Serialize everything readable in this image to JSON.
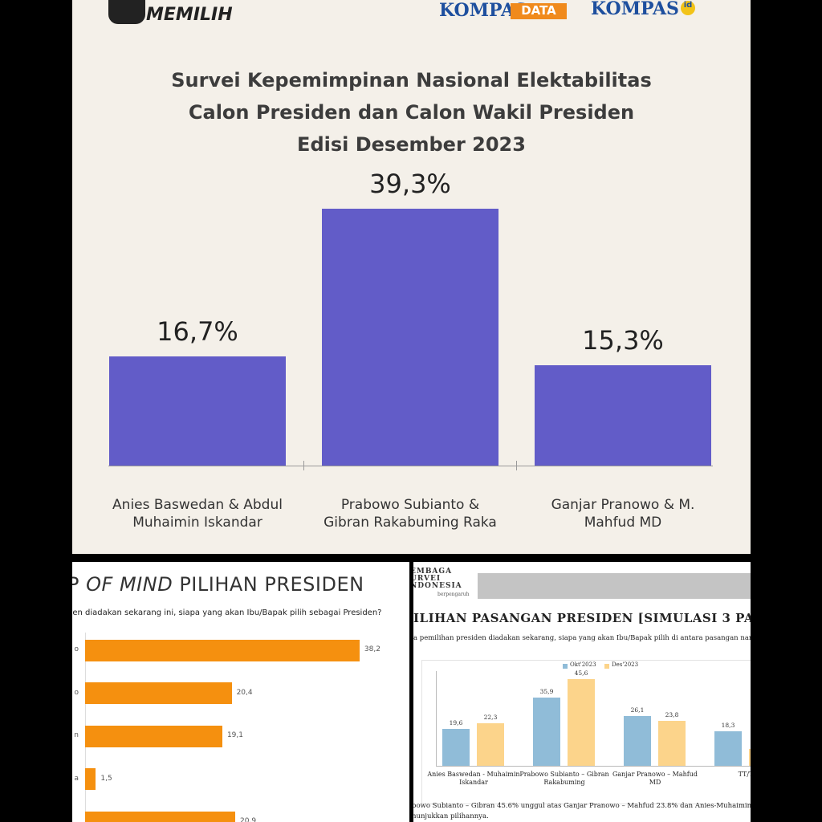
{
  "logos": {
    "memilih": "MEMILIH",
    "kompas_data": [
      "KOMPAS",
      "DATA"
    ],
    "kompas_id": [
      "KOMPAS",
      "id"
    ],
    "lsi": [
      "EMBAGA",
      "URVEI",
      "NDONESIA"
    ],
    "lsi_tagline": "berpengaruh"
  },
  "chart_data": [
    {
      "type": "bar",
      "title": [
        "Survei Kepemimpinan Nasional Elektabilitas",
        "Calon Presiden dan Calon Wakil Presiden",
        "Edisi Desember 2023"
      ],
      "categories": [
        "Anies Baswedan & Abdul Muhaimin Iskandar",
        "Prabowo Subianto & Gibran Rakabuming Raka",
        "Ganjar Pranowo & M. Mahfud MD"
      ],
      "values": [
        16.7,
        39.3,
        15.3
      ],
      "value_labels": [
        "16,7%",
        "39,3%",
        "15,3%"
      ],
      "color": "#625cc8"
    },
    {
      "type": "hbar",
      "title": [
        "P",
        "OF MIND",
        "PILIHAN PRESIDEN"
      ],
      "subtitle": "den diadakan sekarang ini, siapa yang akan Ibu/Bapak pilih sebagai Presiden?",
      "categories": [
        "o",
        "o",
        "n",
        "a",
        null
      ],
      "values": [
        38.2,
        20.4,
        19.1,
        1.5,
        20.9
      ],
      "value_labels": [
        "38,2",
        "20,4",
        "19,1",
        "1,5",
        "20,9"
      ],
      "color": "#f5900f"
    },
    {
      "type": "grouped_bar",
      "title": "ILIHAN PASANGAN PRESIDEN [SIMULASI 3 PA",
      "subtitle": "a pemilihan presiden diadakan sekarang, siapa yang akan Ibu/Bapak pilih di antara pasangan nama berikut",
      "categories": [
        "Anies Baswedan - Muhaimin Iskandar",
        "Prabowo Subianto – Gibran Rakabuming",
        "Ganjar Pranowo – Mahfud MD",
        "TT/T"
      ],
      "series": [
        {
          "name": "Okt'2023",
          "color": "#90bcd8",
          "values": [
            19.6,
            35.9,
            26.1,
            18.3
          ],
          "value_labels": [
            "19,6",
            "35,9",
            "26,1",
            "18,3"
          ]
        },
        {
          "name": "Des'2023",
          "color": "#fcd48b",
          "values": [
            22.3,
            45.6,
            23.8,
            8.9
          ],
          "value_labels": [
            "22,3",
            "45,6",
            "23,8",
            null
          ]
        }
      ],
      "note": [
        "bowo Subianto – Gibran 45.6% unggul atas Ganjar Pranowo – Mahfud 23.8% dan Anies-Muhaimin Iskan",
        "nunjukkan pilihannya."
      ]
    }
  ]
}
